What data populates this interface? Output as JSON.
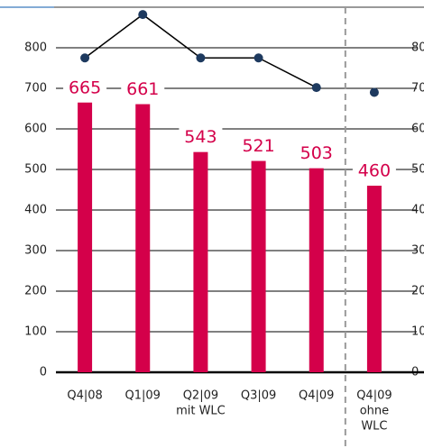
{
  "chart_data": {
    "type": "bar",
    "categories": [
      [
        "Q4|08"
      ],
      [
        "Q1|09"
      ],
      [
        "Q2|09",
        "mit WLC"
      ],
      [
        "Q3|09"
      ],
      [
        "Q4|09"
      ],
      [
        "Q4|09",
        "ohne",
        "WLC"
      ]
    ],
    "values": [
      665,
      661,
      543,
      521,
      503,
      460
    ],
    "color": "#d4004a",
    "series": [
      {
        "type": "line",
        "axis": "y2",
        "color": "#000000",
        "marker_color": "#1e3a5f",
        "values": [
          77.5,
          88.2,
          77.5,
          77.5,
          70.2,
          69.0
        ]
      }
    ],
    "separator_after_index": 4,
    "ylim": [
      0,
      900
    ],
    "yticks": [
      0,
      100,
      200,
      300,
      400,
      500,
      600,
      700,
      800
    ],
    "y2lim": [
      0,
      90
    ],
    "y2ticks": [
      0,
      10,
      20,
      30,
      40,
      50,
      60,
      70,
      80
    ],
    "grid": true
  }
}
